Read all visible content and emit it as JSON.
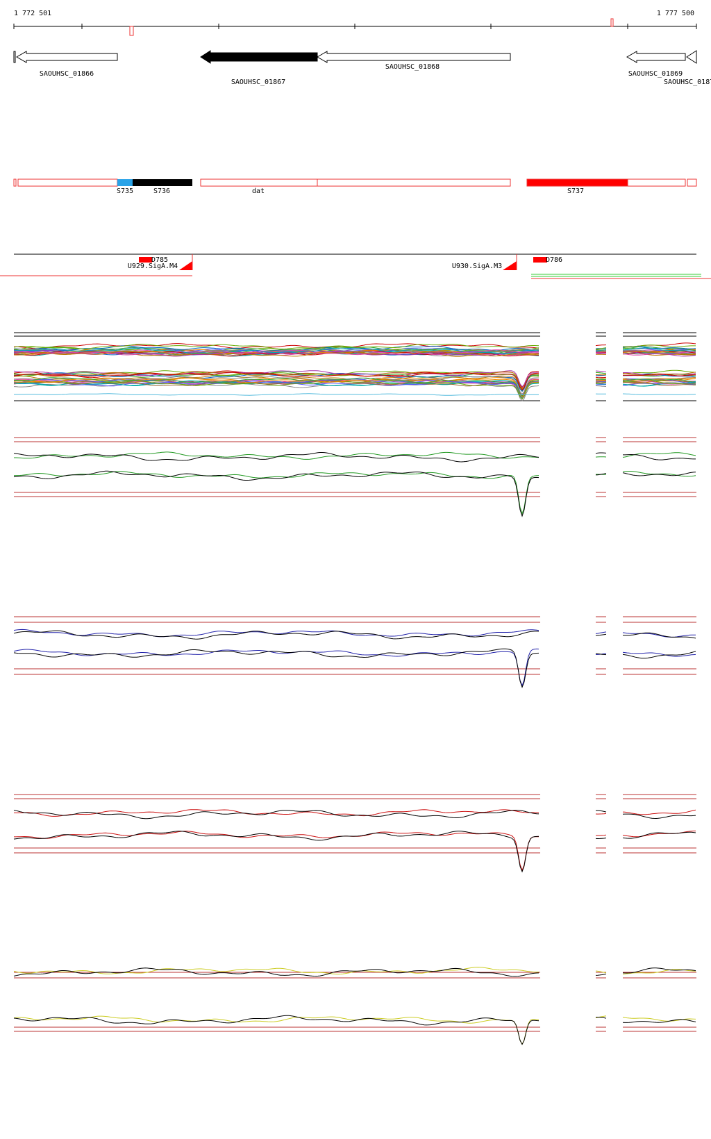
{
  "header": {
    "start": "1 772 501",
    "end": "1 777 500"
  },
  "genes": [
    {
      "label": "SAOUHSC_01866"
    },
    {
      "label": "SAOUHSC_01867"
    },
    {
      "label": "SAOUHSC_01868"
    },
    {
      "label": "SAOUHSC_01869"
    },
    {
      "label": "SAOUHSC_0187"
    }
  ],
  "segments": [
    {
      "label": "S735"
    },
    {
      "label": "S736"
    },
    {
      "label": "dat"
    },
    {
      "label": "S737"
    }
  ],
  "features": [
    {
      "label": "D785"
    },
    {
      "label": "U929.SigA.M4"
    },
    {
      "label": "U930.SigA.M3"
    },
    {
      "label": "D786"
    }
  ]
}
